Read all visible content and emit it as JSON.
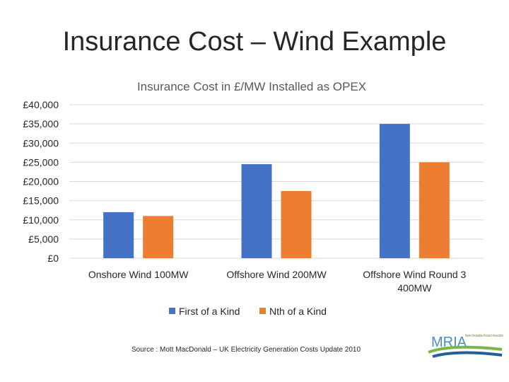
{
  "slide": {
    "title": "Insurance Cost – Wind Example",
    "source": "Source : Mott MacDonald – UK Electricity Generation Costs Update 2010"
  },
  "logo": {
    "text": "MRIA",
    "subtitle": "Marine Renewables Research Association"
  },
  "colors": {
    "series1": "#4472C4",
    "series2": "#ED7D31",
    "grid": "#D9D9D9"
  },
  "chart_data": {
    "type": "bar",
    "title": "Insurance Cost in £/MW Installed as OPEX",
    "categories": [
      [
        "Onshore Wind 100MW"
      ],
      [
        "Offshore Wind 200MW"
      ],
      [
        "Offshore Wind Round 3",
        "400MW"
      ]
    ],
    "series": [
      {
        "name": "First of a Kind",
        "values": [
          12000,
          24500,
          35000
        ]
      },
      {
        "name": "Nth of a Kind",
        "values": [
          11000,
          17500,
          25000
        ]
      }
    ],
    "yticks": [
      "£0",
      "£5,000",
      "£10,000",
      "£15,000",
      "£20,000",
      "£25,000",
      "£30,000",
      "£35,000",
      "£40,000"
    ],
    "ylim": [
      0,
      40000
    ],
    "ystep": 5000,
    "grid": true,
    "legend": "bottom"
  }
}
